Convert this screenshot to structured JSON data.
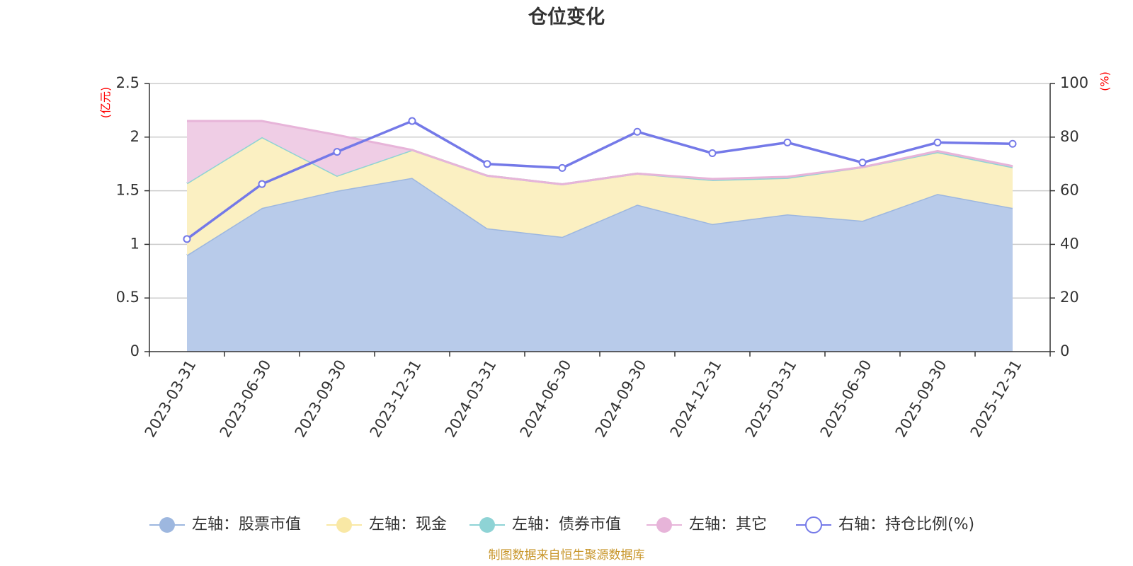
{
  "chart_data": {
    "type": "area",
    "title": "仓位变化",
    "categories": [
      "2023-03-31",
      "2023-06-30",
      "2023-09-30",
      "2023-12-31",
      "2024-03-31",
      "2024-06-30",
      "2024-09-30",
      "2024-12-31",
      "2025-03-31",
      "2025-06-30",
      "2025-09-30",
      "2025-12-31"
    ],
    "left_axis": {
      "unit": "(亿元)",
      "ylim": [
        0,
        2.5
      ],
      "ticks": [
        "0",
        "0.5",
        "1",
        "1.5",
        "2",
        "2.5"
      ]
    },
    "right_axis": {
      "unit": "(%)",
      "ylim": [
        0,
        100
      ],
      "ticks": [
        "0",
        "20",
        "40",
        "60",
        "80",
        "100"
      ]
    },
    "stacked": true,
    "series": [
      {
        "name": "左轴：股票市值",
        "axis": "left",
        "type": "area",
        "color": "#9db7df",
        "fill": "#b8cbea",
        "values": [
          0.9,
          1.34,
          1.5,
          1.62,
          1.15,
          1.07,
          1.37,
          1.19,
          1.28,
          1.22,
          1.47,
          1.34
        ]
      },
      {
        "name": "左轴：现金",
        "axis": "left",
        "type": "area",
        "color": "#f9e8a5",
        "fill": "#fbf0c2",
        "values": [
          0.67,
          0.66,
          0.14,
          0.26,
          0.49,
          0.49,
          0.29,
          0.41,
          0.34,
          0.5,
          0.39,
          0.38
        ]
      },
      {
        "name": "左轴：债券市值",
        "axis": "left",
        "type": "area",
        "color": "#8ed3d5",
        "fill": "#a7dfe0",
        "values": [
          0,
          0,
          0,
          0,
          0,
          0,
          0,
          0,
          0,
          0,
          0,
          0
        ]
      },
      {
        "name": "左轴：其它",
        "axis": "left",
        "type": "area",
        "color": "#e7b4d9",
        "fill": "#efcde5",
        "values": [
          0.58,
          0.15,
          0.38,
          0,
          0,
          0,
          0,
          0.01,
          0.01,
          0,
          0.01,
          0.01
        ]
      },
      {
        "name": "右轴：持仓比例(%)",
        "axis": "right",
        "type": "line",
        "color": "#7479e8",
        "values": [
          42,
          62.5,
          74.5,
          86,
          70,
          68.5,
          82,
          74,
          78,
          70.5,
          78,
          77.5
        ]
      }
    ],
    "legend_position": "bottom",
    "grid": true,
    "source": "制图数据来自恒生聚源数据库"
  }
}
